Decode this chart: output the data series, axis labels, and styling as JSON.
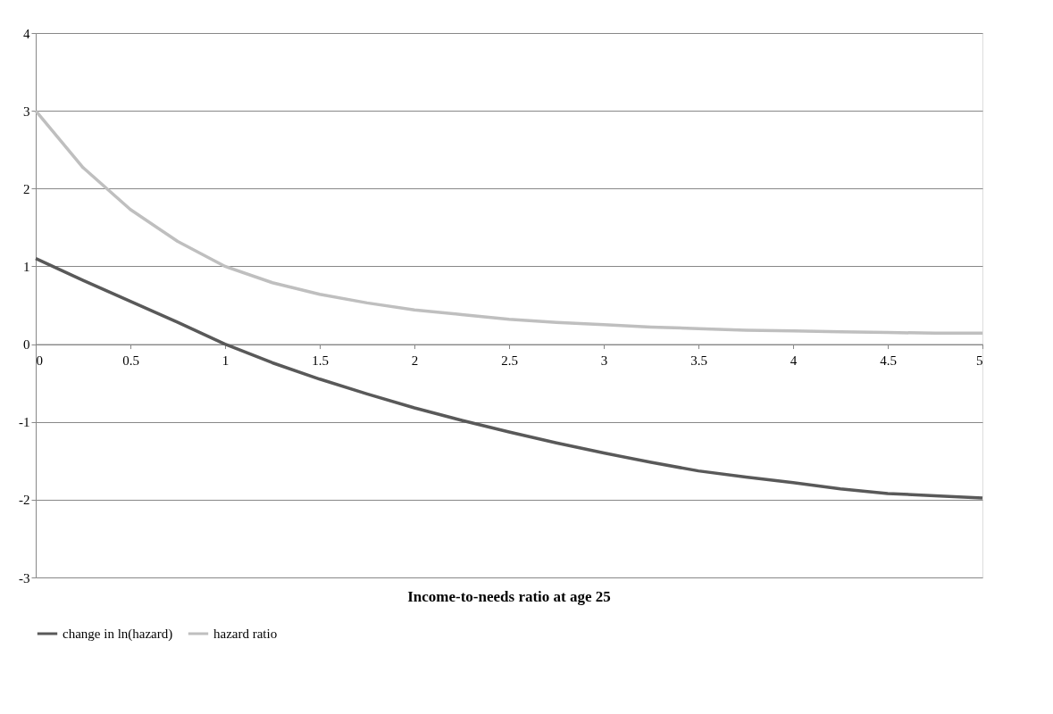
{
  "chart_data": {
    "type": "line",
    "xlabel": "Income-to-needs ratio at age 25",
    "x": [
      0,
      0.25,
      0.5,
      0.75,
      1,
      1.25,
      1.5,
      1.75,
      2,
      2.25,
      2.5,
      2.75,
      3,
      3.25,
      3.5,
      3.75,
      4,
      4.25,
      4.5,
      4.75,
      5
    ],
    "series": [
      {
        "name": "change in ln(hazard)",
        "color": "#595959",
        "values": [
          1.1,
          0.82,
          0.55,
          0.28,
          0,
          -0.24,
          -0.45,
          -0.64,
          -0.82,
          -0.98,
          -1.13,
          -1.27,
          -1.4,
          -1.52,
          -1.63,
          -1.71,
          -1.78,
          -1.86,
          -1.92,
          -1.95,
          -1.98
        ]
      },
      {
        "name": "hazard ratio",
        "color": "#bfbfbf",
        "values": [
          3.0,
          2.27,
          1.73,
          1.32,
          1.0,
          0.79,
          0.64,
          0.53,
          0.44,
          0.38,
          0.32,
          0.28,
          0.25,
          0.22,
          0.2,
          0.18,
          0.17,
          0.16,
          0.15,
          0.14,
          0.14
        ]
      }
    ],
    "xlim": [
      0,
      5
    ],
    "xticks": [
      0,
      0.5,
      1,
      1.5,
      2,
      2.5,
      3,
      3.5,
      4,
      4.5,
      5
    ],
    "ylim": [
      -3,
      4
    ],
    "yticks": [
      -3,
      -2,
      -1,
      0,
      1,
      2,
      3,
      4
    ],
    "grid": "y",
    "legend": "bottom",
    "marker": "none",
    "line_style": "solid"
  }
}
